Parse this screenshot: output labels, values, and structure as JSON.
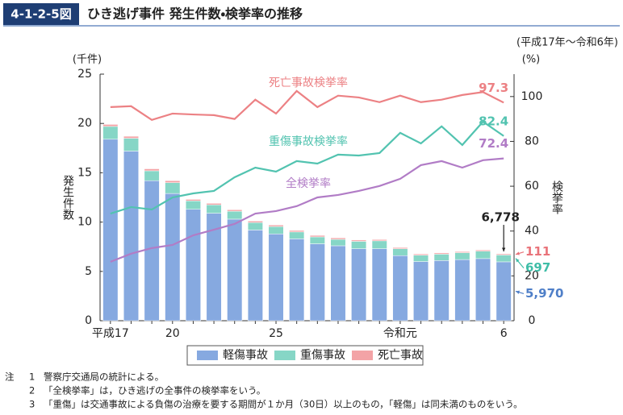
{
  "chart_data": {
    "type": "bar",
    "figure_number": "4-1-2-5図",
    "title": "ひき逃げ事件 発生件数・検挙率の推移",
    "period": "(平成17年～令和6年)",
    "y_unit": "(千件)",
    "y2_unit": "(%)",
    "ylabel": "発生件数",
    "y2label": "検挙率",
    "categories": [
      "平成17",
      null,
      null,
      "20",
      null,
      null,
      null,
      null,
      "25",
      null,
      null,
      null,
      null,
      null,
      "令和元",
      null,
      null,
      null,
      null,
      "6"
    ],
    "ylim": [
      0,
      25
    ],
    "yticks": [
      0,
      5,
      10,
      15,
      20,
      25
    ],
    "y2lim": [
      0,
      110
    ],
    "y2ticks": [
      0,
      20,
      40,
      60,
      80,
      100
    ],
    "stacked": true,
    "series": [
      {
        "name": "軽傷事故",
        "type": "bar",
        "color": "#86a9e0",
        "values": [
          18.4,
          17.2,
          14.2,
          12.9,
          11.3,
          10.9,
          10.3,
          9.2,
          8.8,
          8.3,
          7.8,
          7.6,
          7.3,
          7.3,
          6.6,
          6.0,
          6.1,
          6.2,
          6.3,
          5.97
        ],
        "value_labels": [
          null,
          null,
          null,
          null,
          null,
          null,
          null,
          null,
          null,
          null,
          null,
          null,
          null,
          null,
          null,
          null,
          null,
          null,
          null,
          "5,970"
        ]
      },
      {
        "name": "重傷事故",
        "type": "bar",
        "color": "#86d6c6",
        "values": [
          1.3,
          1.3,
          1.0,
          1.1,
          0.85,
          0.85,
          0.8,
          0.75,
          0.75,
          0.7,
          0.7,
          0.65,
          0.75,
          0.8,
          0.7,
          0.65,
          0.65,
          0.7,
          0.75,
          0.697
        ],
        "value_labels": [
          null,
          null,
          null,
          null,
          null,
          null,
          null,
          null,
          null,
          null,
          null,
          null,
          null,
          null,
          null,
          null,
          null,
          null,
          null,
          "697"
        ]
      },
      {
        "name": "死亡事故",
        "type": "bar",
        "color": "#f3a3a6",
        "values": [
          0.2,
          0.2,
          0.2,
          0.2,
          0.15,
          0.15,
          0.15,
          0.15,
          0.15,
          0.15,
          0.15,
          0.15,
          0.13,
          0.13,
          0.12,
          0.12,
          0.12,
          0.11,
          0.12,
          0.111
        ],
        "value_labels": [
          null,
          null,
          null,
          null,
          null,
          null,
          null,
          null,
          null,
          null,
          null,
          null,
          null,
          null,
          null,
          null,
          null,
          null,
          null,
          "111"
        ]
      },
      {
        "name": "死亡事故検挙率",
        "type": "line",
        "axis": "y2",
        "color": "#ec8184",
        "values": [
          95.3,
          95.7,
          89.6,
          92.4,
          92.0,
          91.7,
          90.0,
          98.6,
          92.4,
          102.5,
          95.3,
          100.4,
          99.6,
          97.5,
          100.4,
          97.5,
          98.6,
          100.7,
          102.0,
          97.3
        ]
      },
      {
        "name": "重傷事故検挙率",
        "type": "line",
        "axis": "y2",
        "color": "#52c3b0",
        "values": [
          47.8,
          50.7,
          49.6,
          55.0,
          56.8,
          57.9,
          64.0,
          68.3,
          66.5,
          71.2,
          70.1,
          74.1,
          73.7,
          74.8,
          83.8,
          79.1,
          86.7,
          78.4,
          88.8,
          82.4
        ]
      },
      {
        "name": "全検挙率",
        "type": "line",
        "axis": "y2",
        "color": "#b17cc6",
        "values": [
          26.3,
          29.9,
          32.4,
          33.8,
          38.1,
          40.6,
          43.2,
          47.8,
          48.9,
          51.1,
          55.0,
          56.1,
          57.9,
          60.1,
          63.3,
          69.4,
          71.2,
          68.3,
          71.6,
          72.4
        ]
      }
    ],
    "total_label": {
      "value": 6.778,
      "label": "6,778"
    },
    "legend": "bottom",
    "notes": {
      "label": "注",
      "items": [
        {
          "num": "1",
          "text": "警察庁交通局の統計による。"
        },
        {
          "num": "2",
          "text": "「全検挙率」は，ひき逃げの全事件の検挙率をいう。"
        },
        {
          "num": "3",
          "text": "「重傷」は交通事故による負傷の治療を要する期間が１か月（30日）以上のもの，「軽傷」は同未満のものをいう。"
        }
      ]
    }
  }
}
